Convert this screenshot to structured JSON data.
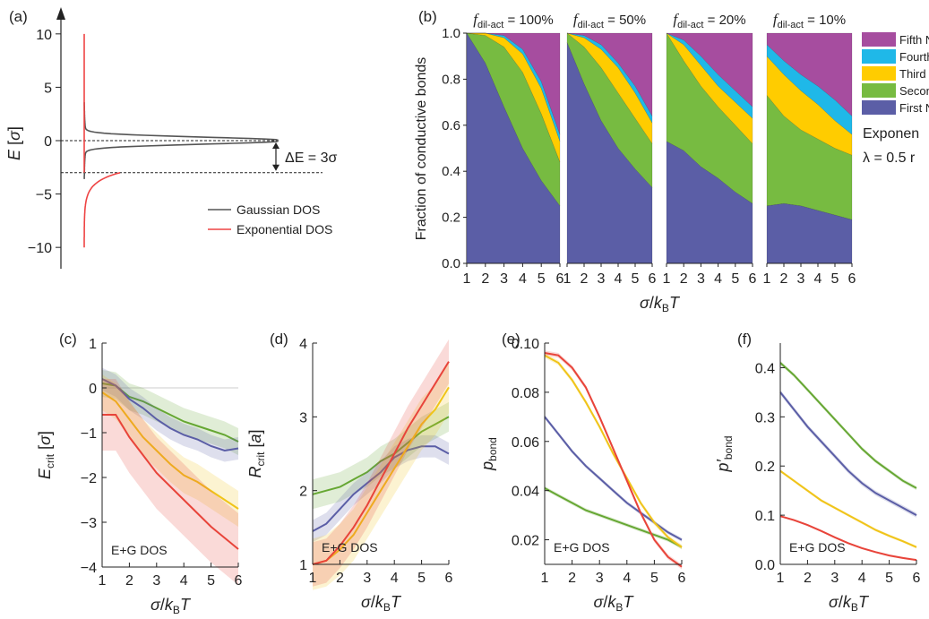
{
  "chart_data": [
    {
      "panel": "(a)",
      "type": "line",
      "ylabel": "E [σ]",
      "ylim": [
        -12,
        12
      ],
      "yticks": [
        "10",
        "5",
        "0",
        "−5",
        "−10"
      ],
      "ytick_values": [
        10,
        5,
        0,
        -5,
        -10
      ],
      "annotation": "ΔE = 3σ",
      "annotation_values": [
        0,
        -3
      ],
      "legend": [
        "Gaussian DOS",
        "Exponential DOS"
      ],
      "legend_placement": "bottom-right",
      "series": [
        {
          "name": "Gaussian DOS",
          "color": "#555555",
          "center": 0,
          "sigma": 1
        },
        {
          "name": "Exponential DOS",
          "color": "#ee4444",
          "edge": -3,
          "tail": -10,
          "top": 10
        }
      ]
    },
    {
      "panel": "(b)",
      "type": "area",
      "stacked": true,
      "ylabel": "Fraction of conductive bonds",
      "xlabel": "σ/kBT",
      "ylim": [
        0,
        1
      ],
      "yticks": [
        "0.0",
        "0.2",
        "0.4",
        "0.6",
        "0.8",
        "1.0"
      ],
      "xticks": [
        "1",
        "2",
        "3",
        "4",
        "5",
        "6"
      ],
      "layer_colors": [
        "#5b5ea6",
        "#77bb41",
        "#ffcc00",
        "#1fb8e8",
        "#a64d9f"
      ],
      "legend": [
        "Fifth N",
        "Fourth",
        "Third",
        "Secon",
        "First N"
      ],
      "legend_colors": [
        "#a64d9f",
        "#1fb8e8",
        "#ffcc00",
        "#77bb41",
        "#5b5ea6"
      ],
      "side_text_1": "Exponen",
      "side_text_2": "λ = 0.5 r",
      "subplots": [
        {
          "title": "f",
          "sub": "dil-act",
          "value": " = 100%",
          "x": [
            1,
            2,
            3,
            4,
            5,
            6
          ],
          "boundaries": [
            [
              1,
              0.87,
              0.68,
              0.5,
              0.36,
              0.25
            ],
            [
              1,
              0.99,
              0.94,
              0.83,
              0.65,
              0.44
            ],
            [
              1,
              1,
              0.98,
              0.91,
              0.76,
              0.53
            ],
            [
              1,
              1,
              0.99,
              0.93,
              0.79,
              0.56
            ],
            [
              1,
              1,
              1,
              1,
              1,
              1
            ]
          ]
        },
        {
          "title": "f",
          "sub": "dil-act",
          "value": " = 50%",
          "x": [
            1,
            2,
            3,
            4,
            5,
            6
          ],
          "boundaries": [
            [
              0.96,
              0.78,
              0.62,
              0.5,
              0.41,
              0.33
            ],
            [
              1,
              0.94,
              0.85,
              0.74,
              0.63,
              0.52
            ],
            [
              1,
              0.98,
              0.93,
              0.85,
              0.74,
              0.61
            ],
            [
              1,
              0.99,
              0.95,
              0.87,
              0.77,
              0.64
            ],
            [
              1,
              1,
              1,
              1,
              1,
              1
            ]
          ]
        },
        {
          "title": "f",
          "sub": "dil-act",
          "value": " = 20%",
          "x": [
            1,
            2,
            3,
            4,
            5,
            6
          ],
          "boundaries": [
            [
              0.53,
              0.49,
              0.42,
              0.37,
              0.31,
              0.26
            ],
            [
              1,
              0.88,
              0.77,
              0.68,
              0.6,
              0.52
            ],
            [
              1,
              0.95,
              0.86,
              0.77,
              0.7,
              0.63
            ],
            [
              1,
              0.97,
              0.9,
              0.82,
              0.75,
              0.68
            ],
            [
              1,
              1,
              1,
              1,
              1,
              1
            ]
          ]
        },
        {
          "title": "f",
          "sub": "dil-act",
          "value": " = 10%",
          "x": [
            1,
            2,
            3,
            4,
            5,
            6
          ],
          "boundaries": [
            [
              0.25,
              0.26,
              0.25,
              0.23,
              0.21,
              0.19
            ],
            [
              0.73,
              0.64,
              0.58,
              0.54,
              0.5,
              0.47
            ],
            [
              0.9,
              0.82,
              0.75,
              0.69,
              0.62,
              0.56
            ],
            [
              0.95,
              0.88,
              0.82,
              0.77,
              0.71,
              0.64
            ],
            [
              1,
              1,
              1,
              1,
              1,
              1
            ]
          ]
        }
      ]
    },
    {
      "panel": "(c)",
      "type": "line",
      "ylabel": "Ecrit [σ]",
      "xlabel": "σ/kBT",
      "xlim": [
        1,
        6
      ],
      "ylim": [
        -4,
        1
      ],
      "xticks": [
        1,
        2,
        3,
        4,
        5,
        6
      ],
      "yticks": [
        1,
        0,
        -1,
        -2,
        -3,
        -4
      ],
      "ytick_labels": [
        "1",
        "0",
        "−1",
        "−2",
        "−3",
        "−4"
      ],
      "reference_line": 0,
      "note": "E+G DOS",
      "x": [
        1,
        1.5,
        2,
        2.5,
        3,
        3.5,
        4,
        4.5,
        5,
        5.5,
        6
      ],
      "series": [
        {
          "color": "#66a733",
          "values": [
            0.1,
            0.05,
            -0.2,
            -0.3,
            -0.45,
            -0.6,
            -0.75,
            -0.85,
            -0.95,
            -1.05,
            -1.2
          ],
          "band": 0.3
        },
        {
          "color": "#5b5ea6",
          "values": [
            0.2,
            0.05,
            -0.25,
            -0.45,
            -0.7,
            -0.9,
            -1.05,
            -1.15,
            -1.3,
            -1.4,
            -1.35
          ],
          "band": 0.25
        },
        {
          "color": "#f0c419",
          "values": [
            -0.1,
            -0.3,
            -0.7,
            -1.1,
            -1.4,
            -1.7,
            -1.95,
            -2.1,
            -2.3,
            -2.5,
            -2.7
          ],
          "band": 0.4
        },
        {
          "color": "#e8443a",
          "values": [
            -0.6,
            -0.6,
            -1.1,
            -1.5,
            -1.9,
            -2.2,
            -2.5,
            -2.8,
            -3.1,
            -3.35,
            -3.6
          ],
          "band": 0.8
        }
      ]
    },
    {
      "panel": "(d)",
      "type": "line",
      "ylabel": "Rcrit [a]",
      "xlabel": "σ/kBT",
      "xlim": [
        1,
        6
      ],
      "ylim": [
        1,
        4
      ],
      "xticks": [
        1,
        2,
        3,
        4,
        5,
        6
      ],
      "yticks": [
        1,
        2,
        3,
        4
      ],
      "ytick_labels": [
        "1",
        "2",
        "3",
        "4"
      ],
      "note": "E+G DOS",
      "x": [
        1,
        1.5,
        2,
        2.5,
        3,
        3.5,
        4,
        4.5,
        5,
        5.5,
        6
      ],
      "series": [
        {
          "color": "#66a733",
          "values": [
            1.95,
            2.0,
            2.05,
            2.15,
            2.25,
            2.4,
            2.5,
            2.65,
            2.8,
            2.9,
            3.0
          ],
          "band": 0.2
        },
        {
          "color": "#5b5ea6",
          "values": [
            1.45,
            1.55,
            1.75,
            1.95,
            2.1,
            2.25,
            2.45,
            2.55,
            2.6,
            2.6,
            2.5
          ],
          "band": 0.15
        },
        {
          "color": "#f0c419",
          "values": [
            1.0,
            1.05,
            1.2,
            1.4,
            1.7,
            2.0,
            2.3,
            2.6,
            2.9,
            3.1,
            3.4
          ],
          "band": 0.35
        },
        {
          "color": "#e8443a",
          "values": [
            1.0,
            1.05,
            1.25,
            1.5,
            1.8,
            2.15,
            2.5,
            2.85,
            3.15,
            3.45,
            3.75
          ],
          "band": 0.3
        }
      ]
    },
    {
      "panel": "(e)",
      "type": "line",
      "ylabel": "pbond",
      "xlabel": "σ/kBT",
      "xlim": [
        1,
        6
      ],
      "ylim": [
        0.01,
        0.1
      ],
      "xticks": [
        1,
        2,
        3,
        4,
        5,
        6
      ],
      "yticks": [
        0.1,
        0.08,
        0.06,
        0.04,
        0.02
      ],
      "ytick_labels": [
        "0.10",
        "0.08",
        "0.06",
        "0.04",
        "0.02"
      ],
      "note": "E+G DOS",
      "x": [
        1,
        1.5,
        2,
        2.5,
        3,
        3.5,
        4,
        4.5,
        5,
        5.5,
        6
      ],
      "series": [
        {
          "color": "#66a733",
          "values": [
            0.041,
            0.038,
            0.035,
            0.032,
            0.03,
            0.028,
            0.026,
            0.024,
            0.022,
            0.02,
            0.017
          ],
          "band": 0.0008
        },
        {
          "color": "#5b5ea6",
          "values": [
            0.07,
            0.063,
            0.056,
            0.05,
            0.045,
            0.04,
            0.035,
            0.031,
            0.027,
            0.023,
            0.02
          ],
          "band": 0.0008
        },
        {
          "color": "#f0c419",
          "values": [
            0.095,
            0.092,
            0.085,
            0.076,
            0.066,
            0.055,
            0.045,
            0.035,
            0.027,
            0.021,
            0.017
          ],
          "band": 0.001
        },
        {
          "color": "#e8443a",
          "values": [
            0.096,
            0.095,
            0.09,
            0.082,
            0.07,
            0.057,
            0.044,
            0.031,
            0.02,
            0.013,
            0.009
          ],
          "band": 0.001
        }
      ]
    },
    {
      "panel": "(f)",
      "type": "line",
      "ylabel": "p′bond",
      "xlabel": "σ/kBT",
      "xlim": [
        1,
        6
      ],
      "ylim": [
        0,
        0.45
      ],
      "xticks": [
        1,
        2,
        3,
        4,
        5,
        6
      ],
      "yticks": [
        0.4,
        0.3,
        0.2,
        0.1,
        0.0
      ],
      "ytick_labels": [
        "0.4",
        "0.3",
        "0.2",
        "0.1",
        "0.0"
      ],
      "note": "E+G DOS",
      "x": [
        1,
        1.5,
        2,
        2.5,
        3,
        3.5,
        4,
        4.5,
        5,
        5.5,
        6
      ],
      "series": [
        {
          "color": "#66a733",
          "values": [
            0.41,
            0.385,
            0.355,
            0.325,
            0.295,
            0.265,
            0.235,
            0.21,
            0.19,
            0.17,
            0.155
          ],
          "band": 0.004
        },
        {
          "color": "#5b5ea6",
          "values": [
            0.35,
            0.315,
            0.28,
            0.25,
            0.22,
            0.19,
            0.165,
            0.145,
            0.13,
            0.115,
            0.1
          ],
          "band": 0.005
        },
        {
          "color": "#f0c419",
          "values": [
            0.19,
            0.17,
            0.15,
            0.13,
            0.115,
            0.1,
            0.085,
            0.07,
            0.058,
            0.047,
            0.035
          ],
          "band": 0.003
        },
        {
          "color": "#e8443a",
          "values": [
            0.098,
            0.09,
            0.08,
            0.068,
            0.055,
            0.043,
            0.033,
            0.025,
            0.018,
            0.013,
            0.009
          ],
          "band": 0.002
        }
      ]
    }
  ]
}
